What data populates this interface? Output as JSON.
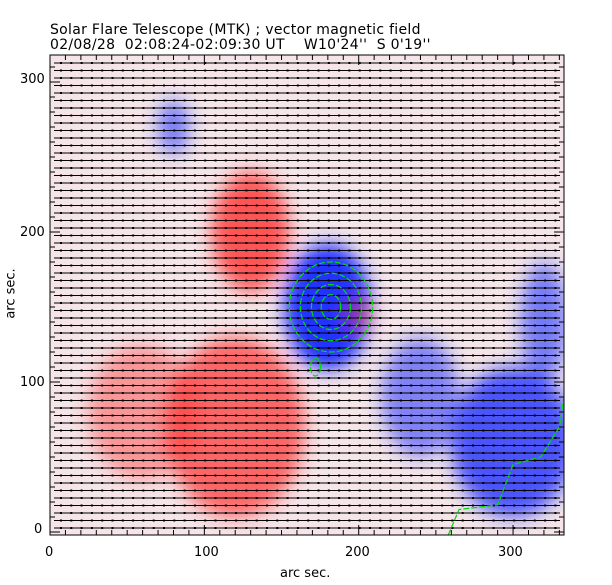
{
  "title": "Solar Flare Telescope (MTK) ; vector magnetic field",
  "subtitle": "02/08/28  02:08:24-02:09:30 UT    W10'24''  S 0'19''",
  "chart_data": {
    "type": "heatmap",
    "title": "Solar Flare Telescope (MTK) ; vector magnetic field",
    "subtitle": "02/08/28  02:08:24-02:09:30 UT    W10'24''  S 0'19''",
    "xlabel": "arc sec.",
    "ylabel": "arc sec.",
    "xlim": [
      0,
      333
    ],
    "ylim": [
      0,
      318
    ],
    "xticks": [
      "0",
      "100",
      "200",
      "300"
    ],
    "yticks": [
      "0",
      "100",
      "200",
      "300"
    ],
    "colors": {
      "positive": "#ff3030",
      "negative": "#2030ff",
      "contour": "#00dd00",
      "vectors": "#000000"
    },
    "blobs": [
      {
        "polarity": "negative",
        "x": 180,
        "y": 150,
        "rx": 28,
        "ry": 42,
        "strength": 1.0
      },
      {
        "polarity": "negative",
        "x": 80,
        "y": 270,
        "rx": 10,
        "ry": 18,
        "strength": 0.6
      },
      {
        "polarity": "negative",
        "x": 300,
        "y": 60,
        "rx": 40,
        "ry": 50,
        "strength": 0.8
      },
      {
        "polarity": "negative",
        "x": 320,
        "y": 140,
        "rx": 15,
        "ry": 40,
        "strength": 0.6
      },
      {
        "polarity": "negative",
        "x": 240,
        "y": 90,
        "rx": 25,
        "ry": 40,
        "strength": 0.55
      },
      {
        "polarity": "positive",
        "x": 130,
        "y": 200,
        "rx": 25,
        "ry": 40,
        "strength": 0.8
      },
      {
        "polarity": "positive",
        "x": 120,
        "y": 70,
        "rx": 45,
        "ry": 60,
        "strength": 0.7
      },
      {
        "polarity": "positive",
        "x": 60,
        "y": 80,
        "rx": 35,
        "ry": 45,
        "strength": 0.45
      },
      {
        "polarity": "positive",
        "x": 200,
        "y": 145,
        "rx": 8,
        "ry": 12,
        "strength": 0.5
      }
    ]
  }
}
